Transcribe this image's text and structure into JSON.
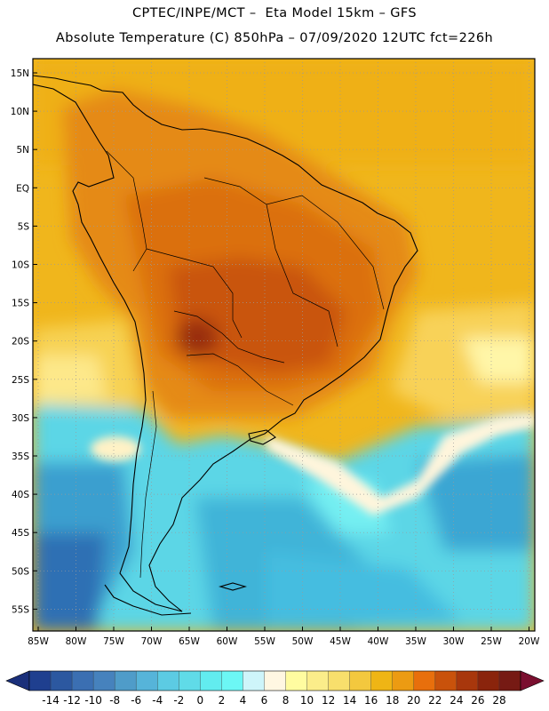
{
  "header": {
    "line1": "CPTEC/INPE/MCT –  Eta Model 15km – GFS",
    "line2": "Absolute Temperature (C) 850hPa – 07/09/2020 12UTC fct=226h"
  },
  "map": {
    "lat_ticks": [
      "15N",
      "10N",
      "5N",
      "EQ",
      "5S",
      "10S",
      "15S",
      "20S",
      "25S",
      "30S",
      "35S",
      "40S",
      "45S",
      "50S",
      "55S"
    ],
    "lon_ticks": [
      "85W",
      "80W",
      "75W",
      "70W",
      "65W",
      "60W",
      "55W",
      "50W",
      "45W",
      "40W",
      "35W",
      "30W",
      "25W",
      "20W"
    ],
    "gridlines": "dotted"
  },
  "colorbar": {
    "labels": [
      "-14",
      "-12",
      "-10",
      "-8",
      "-6",
      "-4",
      "-2",
      "0",
      "2",
      "4",
      "6",
      "8",
      "10",
      "12",
      "14",
      "16",
      "18",
      "20",
      "22",
      "24",
      "26",
      "28"
    ],
    "colors": [
      "#1f3f8f",
      "#2c58a0",
      "#3b6fb2",
      "#4682bd",
      "#4f9cc9",
      "#56b4d9",
      "#5ccbe3",
      "#60dbe8",
      "#62ecef",
      "#6cf7f5",
      "#cef5fa",
      "#fff7e2",
      "#fffca0",
      "#fbed8a",
      "#f8df6c",
      "#f3c83e",
      "#efb515",
      "#ec9b12",
      "#e86f0c",
      "#c9520b",
      "#a8370c",
      "#8a240c",
      "#761a14"
    ],
    "under_color": "#1a2f7a",
    "over_color": "#7a0f2f"
  }
}
